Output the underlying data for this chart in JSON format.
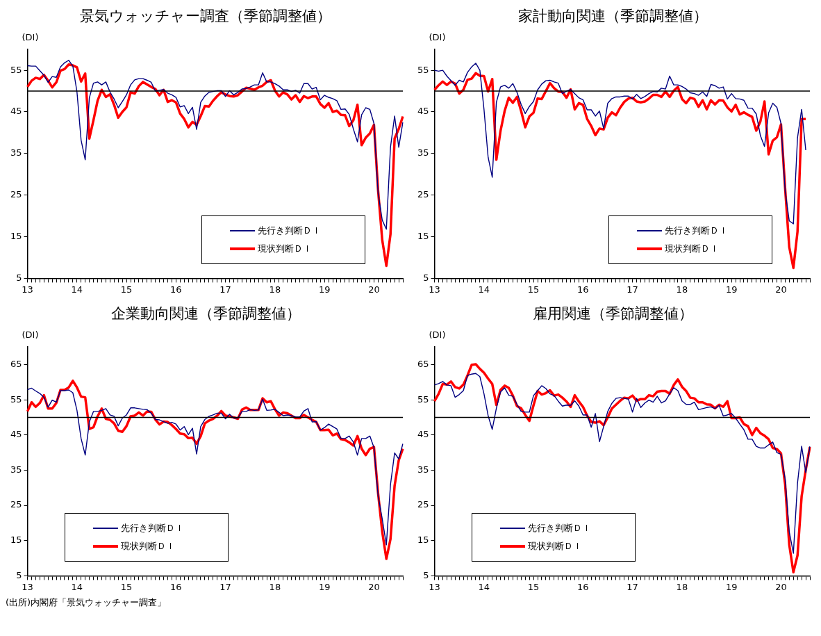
{
  "chart_data": [
    {
      "type": "line",
      "title": "景気ウォッチャー調査（季節調整値）",
      "ylabel": "(DI)",
      "categories": [
        "13",
        null,
        null,
        null,
        null,
        null,
        null,
        null,
        null,
        null,
        null,
        null,
        "14",
        null,
        null,
        null,
        null,
        null,
        null,
        null,
        null,
        null,
        null,
        null,
        "15",
        null,
        null,
        null,
        null,
        null,
        null,
        null,
        null,
        null,
        null,
        null,
        "16",
        null,
        null,
        null,
        null,
        null,
        null,
        null,
        null,
        null,
        null,
        null,
        "17",
        null,
        null,
        null,
        null,
        null,
        null,
        null,
        null,
        null,
        null,
        null,
        "18",
        null,
        null,
        null,
        null,
        null,
        null,
        null,
        null,
        null,
        null,
        null,
        "19",
        null,
        null,
        null,
        null,
        null,
        null,
        null,
        null,
        null,
        null,
        null,
        "20",
        null,
        null,
        null,
        null,
        null,
        null,
        null
      ],
      "ylim": [
        5,
        60
      ],
      "yticks": [
        5,
        15,
        25,
        35,
        45,
        55
      ],
      "marker": "none",
      "legend": "bottom right",
      "ref_lines": [
        {
          "axis": "y",
          "value": 50,
          "color": "#000000"
        }
      ],
      "series": [
        {
          "name": "先行き判断ＤＩ",
          "color": "#000080",
          "values": [
            56.1,
            56.0,
            56.0,
            54.9,
            53.8,
            52.1,
            53.5,
            53.3,
            55.8,
            56.8,
            57.4,
            56.0,
            49.8,
            38.2,
            33.5,
            48.4,
            51.9,
            52.2,
            51.5,
            52.2,
            49.8,
            48.1,
            46.0,
            47.5,
            49.1,
            51.5,
            52.7,
            53.0,
            53.0,
            52.6,
            52.1,
            50.0,
            50.2,
            50.4,
            49.5,
            49.1,
            48.5,
            46.2,
            46.5,
            44.6,
            46.1,
            40.8,
            47.3,
            48.8,
            49.7,
            49.9,
            50.1,
            50.1,
            48.7,
            50.1,
            49.1,
            49.7,
            50.5,
            50.6,
            51.0,
            51.5,
            51.5,
            54.4,
            52.2,
            52.2,
            51.8,
            51.2,
            50.3,
            50.3,
            49.9,
            50.2,
            49.5,
            51.8,
            51.8,
            50.5,
            50.9,
            47.9,
            49.0,
            48.5,
            48.2,
            47.7,
            45.6,
            45.7,
            44.4,
            40.9,
            37.8,
            44.3,
            46.0,
            45.6,
            42.2,
            25.5,
            19.0,
            16.8,
            36.5,
            44.0,
            36.5,
            42.5
          ]
        },
        {
          "name": "現状判断ＤＩ",
          "color": "#ff0000",
          "values": [
            51.0,
            52.5,
            53.2,
            52.9,
            53.9,
            52.5,
            50.9,
            52.1,
            54.9,
            55.3,
            56.4,
            56.2,
            55.7,
            52.3,
            54.2,
            38.6,
            43.0,
            47.7,
            50.3,
            48.6,
            49.2,
            46.7,
            43.6,
            45.0,
            46.1,
            49.7,
            49.4,
            51.2,
            52.2,
            51.6,
            51.0,
            50.5,
            49.0,
            50.3,
            47.4,
            47.8,
            47.3,
            44.6,
            43.3,
            41.3,
            42.6,
            41.9,
            44.0,
            46.4,
            46.3,
            47.7,
            48.8,
            49.7,
            49.2,
            48.8,
            48.7,
            49.0,
            49.9,
            50.8,
            50.6,
            50.3,
            50.9,
            51.3,
            52.2,
            52.6,
            50.1,
            48.7,
            49.7,
            49.2,
            48.0,
            49.0,
            47.4,
            48.8,
            48.3,
            48.7,
            48.7,
            46.9,
            46.0,
            47.1,
            45.0,
            45.3,
            44.3,
            44.2,
            41.6,
            43.0,
            46.7,
            37.0,
            38.8,
            39.8,
            41.9,
            26.1,
            14.2,
            8.0,
            15.6,
            38.6,
            40.9,
            43.9
          ]
        }
      ]
    },
    {
      "type": "line",
      "title": "家計動向関連（季節調整値）",
      "ylabel": "(DI)",
      "categories": [
        "13",
        null,
        null,
        null,
        null,
        null,
        null,
        null,
        null,
        null,
        null,
        null,
        "14",
        null,
        null,
        null,
        null,
        null,
        null,
        null,
        null,
        null,
        null,
        null,
        "15",
        null,
        null,
        null,
        null,
        null,
        null,
        null,
        null,
        null,
        null,
        null,
        "16",
        null,
        null,
        null,
        null,
        null,
        null,
        null,
        null,
        null,
        null,
        null,
        "17",
        null,
        null,
        null,
        null,
        null,
        null,
        null,
        null,
        null,
        null,
        null,
        "18",
        null,
        null,
        null,
        null,
        null,
        null,
        null,
        null,
        null,
        null,
        null,
        "19",
        null,
        null,
        null,
        null,
        null,
        null,
        null,
        null,
        null,
        null,
        null,
        "20",
        null,
        null,
        null,
        null,
        null,
        null,
        null
      ],
      "ylim": [
        5,
        60
      ],
      "yticks": [
        5,
        15,
        25,
        35,
        45,
        55
      ],
      "marker": "none",
      "legend": "bottom right",
      "ref_lines": [
        {
          "axis": "y",
          "value": 50,
          "color": "#000000"
        }
      ],
      "series": [
        {
          "name": "先行き判断ＤＩ",
          "color": "#000080",
          "values": [
            55.0,
            54.8,
            55.0,
            53.6,
            52.5,
            51.4,
            52.6,
            52.2,
            54.5,
            55.8,
            56.7,
            55.0,
            45.6,
            34.1,
            29.3,
            47.3,
            51.0,
            51.4,
            50.7,
            51.8,
            49.7,
            46.8,
            44.6,
            46.3,
            47.5,
            50.3,
            51.7,
            52.5,
            52.6,
            52.2,
            51.9,
            49.4,
            50.0,
            50.4,
            49.4,
            48.4,
            47.9,
            45.5,
            45.5,
            44.0,
            45.2,
            41.0,
            47.1,
            48.2,
            48.6,
            48.6,
            48.8,
            48.8,
            48.1,
            49.2,
            48.2,
            48.7,
            49.4,
            49.9,
            49.8,
            50.7,
            50.5,
            53.6,
            51.5,
            51.5,
            51.1,
            50.5,
            49.6,
            49.4,
            49.0,
            49.8,
            48.7,
            51.6,
            51.3,
            50.7,
            51.0,
            48.1,
            49.4,
            48.2,
            48.1,
            47.8,
            45.9,
            45.9,
            44.5,
            39.3,
            36.7,
            44.8,
            47.1,
            46.1,
            42.2,
            26.0,
            18.8,
            18.1,
            38.8,
            45.6,
            35.8,
            null
          ]
        },
        {
          "name": "現状判断ＤＩ",
          "color": "#ff0000",
          "values": [
            50.3,
            51.4,
            52.3,
            51.5,
            52.3,
            51.8,
            49.4,
            50.3,
            52.7,
            53.0,
            54.3,
            53.7,
            53.6,
            49.9,
            52.9,
            33.5,
            40.4,
            45.2,
            48.4,
            47.2,
            48.6,
            45.2,
            41.3,
            43.9,
            44.8,
            48.2,
            48.1,
            50.0,
            51.9,
            50.7,
            49.9,
            49.8,
            48.4,
            50.4,
            45.6,
            47.1,
            46.7,
            43.3,
            41.6,
            39.4,
            41.0,
            40.8,
            43.6,
            44.9,
            44.2,
            46.0,
            47.4,
            48.2,
            48.4,
            47.5,
            47.3,
            47.5,
            48.2,
            49.1,
            49.1,
            48.6,
            49.9,
            48.6,
            50.1,
            51.0,
            48.1,
            47.1,
            48.4,
            48.1,
            46.2,
            47.8,
            45.6,
            47.8,
            46.8,
            47.8,
            47.7,
            46.1,
            45.1,
            46.7,
            44.4,
            44.9,
            44.3,
            43.8,
            40.5,
            42.7,
            47.5,
            34.8,
            38.1,
            38.9,
            42.0,
            26.6,
            12.5,
            7.5,
            16.2,
            43.3,
            43.3,
            null
          ]
        }
      ]
    },
    {
      "type": "line",
      "title": "企業動向関連（季節調整値）",
      "ylabel": "(DI)",
      "categories": [
        "13",
        null,
        null,
        null,
        null,
        null,
        null,
        null,
        null,
        null,
        null,
        null,
        "14",
        null,
        null,
        null,
        null,
        null,
        null,
        null,
        null,
        null,
        null,
        null,
        "15",
        null,
        null,
        null,
        null,
        null,
        null,
        null,
        null,
        null,
        null,
        null,
        "16",
        null,
        null,
        null,
        null,
        null,
        null,
        null,
        null,
        null,
        null,
        null,
        "17",
        null,
        null,
        null,
        null,
        null,
        null,
        null,
        null,
        null,
        null,
        null,
        "18",
        null,
        null,
        null,
        null,
        null,
        null,
        null,
        null,
        null,
        null,
        null,
        "19",
        null,
        null,
        null,
        null,
        null,
        null,
        null,
        null,
        null,
        null,
        null,
        "20",
        null,
        null,
        null,
        null,
        null,
        null,
        null
      ],
      "ylim": [
        5,
        70
      ],
      "yticks": [
        5,
        15,
        25,
        35,
        45,
        55,
        65
      ],
      "marker": "none",
      "legend": "bottom left",
      "ref_lines": [
        {
          "axis": "y",
          "value": 50,
          "color": "#000000"
        }
      ],
      "annotations": [
        "(出所)内閣府「景気ウォッチャー調査」"
      ],
      "series": [
        {
          "name": "先行き判断ＤＩ",
          "color": "#000080",
          "values": [
            57.9,
            58.3,
            57.5,
            56.8,
            55.7,
            52.9,
            54.9,
            54.3,
            57.6,
            57.6,
            57.8,
            57.0,
            52.0,
            44.0,
            39.3,
            48.7,
            51.7,
            51.7,
            52.0,
            52.5,
            50.7,
            50.3,
            47.6,
            49.8,
            50.7,
            52.7,
            52.7,
            52.5,
            52.3,
            52.2,
            51.2,
            49.4,
            49.3,
            48.8,
            48.3,
            48.6,
            48.1,
            46.4,
            47.4,
            45.1,
            46.9,
            39.6,
            47.4,
            49.4,
            50.3,
            50.7,
            51.2,
            51.2,
            49.6,
            50.9,
            49.8,
            49.8,
            51.7,
            51.7,
            52.2,
            52.0,
            52.1,
            55.2,
            52.0,
            52.1,
            52.3,
            51.4,
            50.5,
            50.7,
            50.5,
            50.1,
            50.1,
            51.8,
            52.5,
            48.7,
            48.8,
            46.4,
            47.1,
            48.1,
            47.4,
            46.7,
            44.0,
            44.0,
            44.7,
            43.0,
            39.3,
            44.0,
            44.0,
            44.7,
            41.4,
            27.7,
            21.2,
            13.8,
            30.9,
            39.9,
            38.2,
            42.5
          ]
        },
        {
          "name": "現状判断ＤＩ",
          "color": "#ff0000",
          "values": [
            51.7,
            54.3,
            53.0,
            54.1,
            56.3,
            52.5,
            52.5,
            54.1,
            57.8,
            57.8,
            58.5,
            60.4,
            58.5,
            55.9,
            55.7,
            46.7,
            47.2,
            50.3,
            52.5,
            49.6,
            49.3,
            48.3,
            46.2,
            45.9,
            47.5,
            50.3,
            50.5,
            51.4,
            50.5,
            51.7,
            51.6,
            49.4,
            48.0,
            48.8,
            48.7,
            47.8,
            46.7,
            45.4,
            45.2,
            44.1,
            44.2,
            42.5,
            44.7,
            48.3,
            49.1,
            49.6,
            50.5,
            51.8,
            50.5,
            50.3,
            50.0,
            49.6,
            52.2,
            52.8,
            52.1,
            52.1,
            52.1,
            55.4,
            54.3,
            54.6,
            52.3,
            50.5,
            51.4,
            51.2,
            50.5,
            49.8,
            49.8,
            50.7,
            50.0,
            49.3,
            48.7,
            46.4,
            46.4,
            46.5,
            44.9,
            45.4,
            43.8,
            43.6,
            42.9,
            42.0,
            44.7,
            41.1,
            39.3,
            41.1,
            41.6,
            28.4,
            17.5,
            9.8,
            15.4,
            30.6,
            37.8,
            41.1
          ]
        }
      ]
    },
    {
      "type": "line",
      "title": "雇用関連（季節調整値）",
      "ylabel": "(DI)",
      "categories": [
        "13",
        null,
        null,
        null,
        null,
        null,
        null,
        null,
        null,
        null,
        null,
        null,
        "14",
        null,
        null,
        null,
        null,
        null,
        null,
        null,
        null,
        null,
        null,
        null,
        "15",
        null,
        null,
        null,
        null,
        null,
        null,
        null,
        null,
        null,
        null,
        null,
        "16",
        null,
        null,
        null,
        null,
        null,
        null,
        null,
        null,
        null,
        null,
        null,
        "17",
        null,
        null,
        null,
        null,
        null,
        null,
        null,
        null,
        null,
        null,
        null,
        "18",
        null,
        null,
        null,
        null,
        null,
        null,
        null,
        null,
        null,
        null,
        null,
        "19",
        null,
        null,
        null,
        null,
        null,
        null,
        null,
        null,
        null,
        null,
        null,
        "20",
        null,
        null,
        null,
        null,
        null,
        null,
        null
      ],
      "ylim": [
        5,
        70
      ],
      "yticks": [
        5,
        15,
        25,
        35,
        45,
        55,
        65
      ],
      "marker": "none",
      "legend": "bottom left",
      "ref_lines": [
        {
          "axis": "y",
          "value": 50,
          "color": "#000000"
        }
      ],
      "series": [
        {
          "name": "先行き判断ＤＩ",
          "color": "#000080",
          "values": [
            59.2,
            59.6,
            60.2,
            59.2,
            59.0,
            55.7,
            56.5,
            57.6,
            61.9,
            62.3,
            62.5,
            61.6,
            56.7,
            50.5,
            46.6,
            52.6,
            57.2,
            58.4,
            56.3,
            56.0,
            53.7,
            51.7,
            51.5,
            51.5,
            56.2,
            57.6,
            59.0,
            58.2,
            56.7,
            56.2,
            54.6,
            53.2,
            53.5,
            53.4,
            54.7,
            53.2,
            50.7,
            50.7,
            47.2,
            51.1,
            43.1,
            47.4,
            51.7,
            54.0,
            55.4,
            55.6,
            55.4,
            55.2,
            51.5,
            55.4,
            52.8,
            54.1,
            54.9,
            54.3,
            56.0,
            54.1,
            54.7,
            56.7,
            58.4,
            57.6,
            54.7,
            53.7,
            53.7,
            54.3,
            52.2,
            52.5,
            52.8,
            53.0,
            52.5,
            53.4,
            50.4,
            50.7,
            51.1,
            49.8,
            48.1,
            46.5,
            43.8,
            43.8,
            41.8,
            41.3,
            41.3,
            42.2,
            43.0,
            40.0,
            39.5,
            32.5,
            17.5,
            11.4,
            31.3,
            41.8,
            34.3,
            41.8
          ]
        },
        {
          "name": "現状判断ＤＩ",
          "color": "#ff0000",
          "values": [
            54.6,
            56.7,
            59.5,
            59.3,
            60.2,
            58.6,
            58.2,
            59.3,
            61.9,
            64.9,
            65.1,
            63.8,
            62.7,
            61.0,
            59.5,
            53.5,
            57.8,
            59.0,
            58.4,
            56.2,
            53.2,
            52.6,
            50.7,
            49.0,
            53.4,
            57.5,
            56.5,
            56.9,
            57.7,
            56.2,
            56.5,
            55.6,
            54.5,
            53.0,
            56.3,
            54.5,
            53.0,
            50.5,
            48.7,
            48.5,
            48.9,
            47.8,
            50.0,
            52.5,
            53.6,
            54.7,
            55.6,
            55.4,
            56.2,
            54.7,
            55.2,
            55.2,
            56.3,
            56.0,
            57.3,
            57.5,
            57.5,
            56.7,
            59.2,
            60.8,
            58.7,
            57.5,
            55.6,
            55.4,
            54.3,
            54.3,
            53.7,
            53.6,
            52.6,
            53.6,
            53.0,
            54.6,
            49.8,
            49.8,
            50.0,
            48.1,
            47.5,
            45.0,
            47.0,
            45.5,
            44.8,
            43.8,
            41.3,
            41.0,
            39.8,
            31.0,
            13.8,
            6.0,
            10.8,
            27.6,
            35.1,
            41.6
          ]
        }
      ]
    }
  ]
}
